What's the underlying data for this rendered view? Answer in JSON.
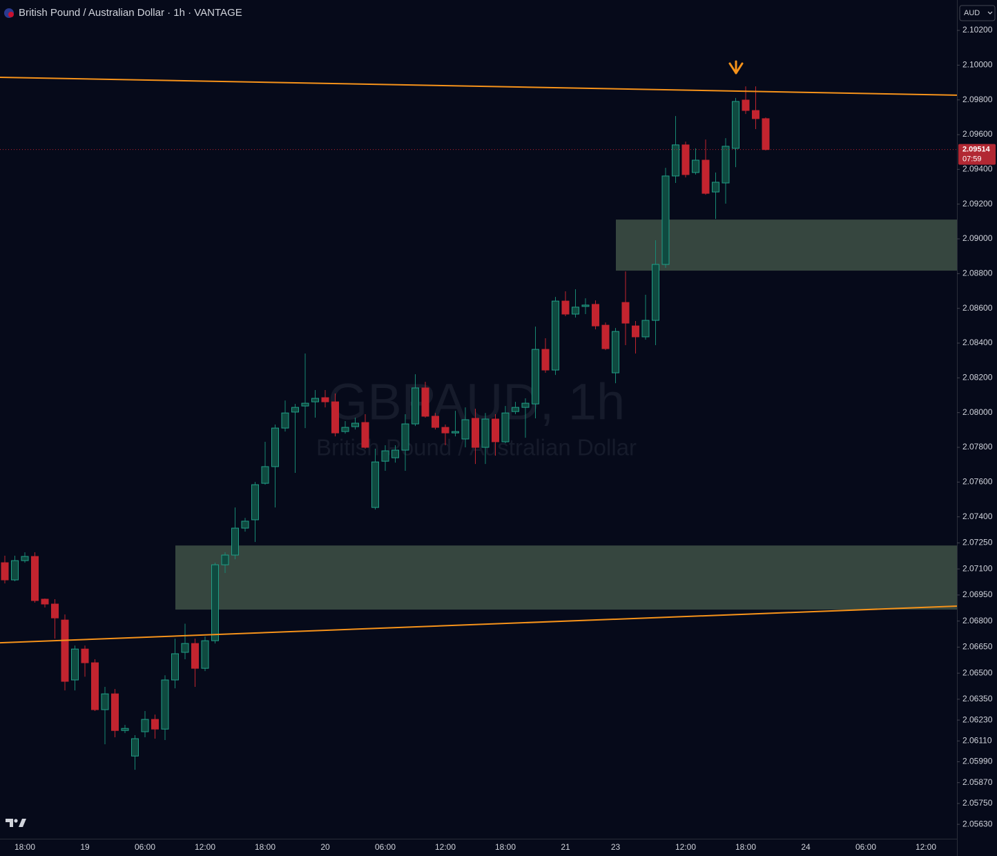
{
  "header": {
    "title": "British Pound / Australian Dollar · 1h · VANTAGE",
    "currency": "AUD"
  },
  "chart_data": {
    "type": "candlestick",
    "watermark": "GBPAUD, 1h",
    "watermark_subtitle": "British Pound / Australian Dollar",
    "up_color": "#178a74",
    "down_color": "#c3242f",
    "categories": [
      null,
      null,
      "18:00",
      null,
      null,
      null,
      null,
      null,
      "19",
      null,
      null,
      null,
      null,
      null,
      "06:00",
      null,
      null,
      null,
      null,
      null,
      "12:00",
      null,
      null,
      null,
      null,
      null,
      "18:00",
      null,
      null,
      null,
      null,
      null,
      "20",
      null,
      null,
      null,
      null,
      null,
      "06:00",
      null,
      null,
      null,
      null,
      null,
      "12:00",
      null,
      null,
      null,
      null,
      null,
      "18:00",
      null,
      null,
      null,
      null,
      null,
      "21",
      null,
      null,
      null,
      null,
      "23",
      null,
      null,
      null,
      null,
      null,
      null,
      "12:00",
      null,
      null,
      null,
      null,
      null,
      "18:00",
      null,
      null,
      null,
      null,
      null,
      "24",
      null,
      null,
      null,
      null,
      null,
      "06:00",
      null,
      null,
      null,
      null,
      null,
      "12:00"
    ],
    "open": [
      2.07136,
      2.07037,
      2.07148,
      2.07172,
      2.06926,
      2.06898,
      2.06806,
      2.06461,
      2.06639,
      2.0656,
      2.0629,
      2.06381,
      2.0617,
      2.06023,
      2.06163,
      2.06234,
      2.06178,
      2.06461,
      2.0662,
      2.06671,
      2.06528,
      2.06687,
      2.07124,
      2.0718,
      2.07335,
      2.07383,
      2.07593,
      2.07689,
      2.07911,
      2.08003,
      2.08038,
      2.08062,
      2.08086,
      2.08062,
      2.07891,
      2.07919,
      2.07943,
      2.07454,
      2.0772,
      2.0774,
      2.07784,
      2.07935,
      2.08142,
      2.07979,
      2.07915,
      2.07883,
      2.07848,
      2.07967,
      2.078,
      2.07963,
      2.07832,
      2.08006,
      2.0803,
      2.0805,
      2.08364,
      2.08245,
      2.08642,
      2.08567,
      2.08611,
      2.08623,
      2.08503,
      2.08229,
      2.08634,
      2.08499,
      2.08436,
      2.08531,
      2.08853,
      2.09362,
      2.09541,
      2.09382,
      2.09453,
      2.0927,
      2.09322,
      2.09521,
      2.09799,
      2.09739,
      2.09692,
      null,
      null,
      null,
      null,
      null,
      null,
      null,
      null,
      null,
      null,
      null,
      null,
      null,
      null,
      null,
      null
    ],
    "high": [
      2.07176,
      2.07176,
      2.07196,
      2.07196,
      2.0693,
      2.06926,
      2.06838,
      2.06659,
      2.06659,
      2.0658,
      2.06421,
      2.06409,
      2.06202,
      2.06143,
      2.06282,
      2.06262,
      2.06488,
      2.06699,
      2.06785,
      2.06699,
      2.06711,
      2.07136,
      2.07196,
      2.07454,
      2.07394,
      2.07601,
      2.07832,
      2.07931,
      2.0807,
      2.0805,
      2.0834,
      2.0813,
      2.0813,
      2.0811,
      2.07951,
      2.07971,
      2.07991,
      2.07792,
      2.07812,
      2.07812,
      2.07991,
      2.08221,
      2.08177,
      2.07998,
      2.07931,
      2.0801,
      2.0803,
      2.08022,
      2.07998,
      2.07991,
      2.08038,
      2.08062,
      2.08082,
      2.08495,
      2.08428,
      2.08666,
      2.08698,
      2.0871,
      2.08658,
      2.08646,
      2.08519,
      2.08487,
      2.08813,
      2.08527,
      2.08678,
      2.08992,
      2.09409,
      2.09707,
      2.0956,
      2.09521,
      2.09572,
      2.09382,
      2.0958,
      2.09811,
      2.09878,
      2.09878,
      2.09699,
      null,
      null,
      null,
      null,
      null,
      null,
      null,
      null,
      null,
      null,
      null,
      null,
      null,
      null,
      null,
      null
    ],
    "low": [
      2.07017,
      2.07029,
      2.07136,
      2.06906,
      2.06878,
      2.06699,
      2.06401,
      2.06401,
      2.0648,
      2.06282,
      2.06091,
      2.06131,
      2.06155,
      2.05944,
      2.06131,
      2.06123,
      2.06115,
      2.06413,
      2.0658,
      2.06421,
      2.06512,
      2.06671,
      2.07077,
      2.07156,
      2.07315,
      2.07255,
      2.07585,
      2.07454,
      2.07891,
      2.07653,
      2.07911,
      2.07971,
      2.0803,
      2.07863,
      2.07879,
      2.07903,
      2.07792,
      2.07442,
      2.07665,
      2.07712,
      2.07665,
      2.07923,
      2.07971,
      2.07903,
      2.07812,
      2.07863,
      2.078,
      2.07704,
      2.07704,
      2.07752,
      2.07824,
      2.07991,
      2.07855,
      2.07967,
      2.08229,
      2.08217,
      2.08555,
      2.08547,
      2.08567,
      2.08479,
      2.0836,
      2.08169,
      2.08388,
      2.0834,
      2.0842,
      2.08388,
      2.08833,
      2.09322,
      2.09354,
      2.0937,
      2.09254,
      2.09115,
      2.09203,
      2.09413,
      2.09719,
      2.09632,
      2.09509,
      null,
      null,
      null,
      null,
      null,
      null,
      null,
      null,
      null,
      null,
      null,
      null,
      null,
      null,
      null,
      null
    ],
    "close": [
      2.07037,
      2.07148,
      2.07172,
      2.06918,
      2.06898,
      2.06818,
      2.06453,
      2.06639,
      2.0656,
      2.0629,
      2.06381,
      2.0617,
      2.06182,
      2.06123,
      2.06234,
      2.06178,
      2.06461,
      2.06612,
      2.06671,
      2.06528,
      2.06687,
      2.07124,
      2.0718,
      2.07335,
      2.07375,
      2.07585,
      2.07689,
      2.07911,
      2.07998,
      2.0803,
      2.08054,
      2.08082,
      2.08062,
      2.07883,
      2.07915,
      2.07939,
      2.078,
      2.07716,
      2.0778,
      2.07784,
      2.07935,
      2.08142,
      2.07979,
      2.07915,
      2.07883,
      2.07891,
      2.07959,
      2.078,
      2.07963,
      2.07832,
      2.07998,
      2.0803,
      2.08054,
      2.08364,
      2.08245,
      2.08642,
      2.08567,
      2.08607,
      2.08619,
      2.08499,
      2.08368,
      2.08467,
      2.08515,
      2.08436,
      2.08531,
      2.08853,
      2.09362,
      2.09541,
      2.0937,
      2.09453,
      2.09262,
      2.09326,
      2.09533,
      2.09791,
      2.09739,
      2.09692,
      2.09514,
      null,
      null,
      null,
      null,
      null,
      null,
      null,
      null,
      null,
      null,
      null,
      null,
      null,
      null,
      null,
      null
    ],
    "countdown": "07:59",
    "ylim": [
      2.05547,
      2.10375
    ],
    "yticks": [
      {
        "value": 2.102,
        "label": "2.10200"
      },
      {
        "value": 2.1,
        "label": "2.10000"
      },
      {
        "value": 2.098,
        "label": "2.09800"
      },
      {
        "value": 2.096,
        "label": "2.09600"
      },
      {
        "value": 2.094,
        "label": "2.09400"
      },
      {
        "value": 2.092,
        "label": "2.09200"
      },
      {
        "value": 2.09,
        "label": "2.09000"
      },
      {
        "value": 2.088,
        "label": "2.08800"
      },
      {
        "value": 2.086,
        "label": "2.08600"
      },
      {
        "value": 2.084,
        "label": "2.08400"
      },
      {
        "value": 2.082,
        "label": "2.08200"
      },
      {
        "value": 2.08,
        "label": "2.08000"
      },
      {
        "value": 2.078,
        "label": "2.07800"
      },
      {
        "value": 2.076,
        "label": "2.07600"
      },
      {
        "value": 2.074,
        "label": "2.07400"
      },
      {
        "value": 2.0725,
        "label": "2.07250"
      },
      {
        "value": 2.071,
        "label": "2.07100"
      },
      {
        "value": 2.0695,
        "label": "2.06950"
      },
      {
        "value": 2.068,
        "label": "2.06800"
      },
      {
        "value": 2.0665,
        "label": "2.06650"
      },
      {
        "value": 2.065,
        "label": "2.06500"
      },
      {
        "value": 2.0635,
        "label": "2.06350"
      },
      {
        "value": 2.0623,
        "label": "2.06230"
      },
      {
        "value": 2.0611,
        "label": "2.06110"
      },
      {
        "value": 2.0599,
        "label": "2.05990"
      },
      {
        "value": 2.0587,
        "label": "2.05870"
      },
      {
        "value": 2.0575,
        "label": "2.05750"
      },
      {
        "value": 2.0563,
        "label": "2.05630"
      }
    ],
    "zones": [
      {
        "top": 2.09111,
        "bottom": 2.08817
      },
      {
        "top": 2.07235,
        "bottom": 2.06866
      }
    ],
    "zone_color": "#36463f",
    "trendlines": [
      {
        "start": 2.0993,
        "end": 2.09827
      },
      {
        "start": 2.06675,
        "end": 2.06886
      }
    ],
    "trendline_color": "#f7931a"
  }
}
